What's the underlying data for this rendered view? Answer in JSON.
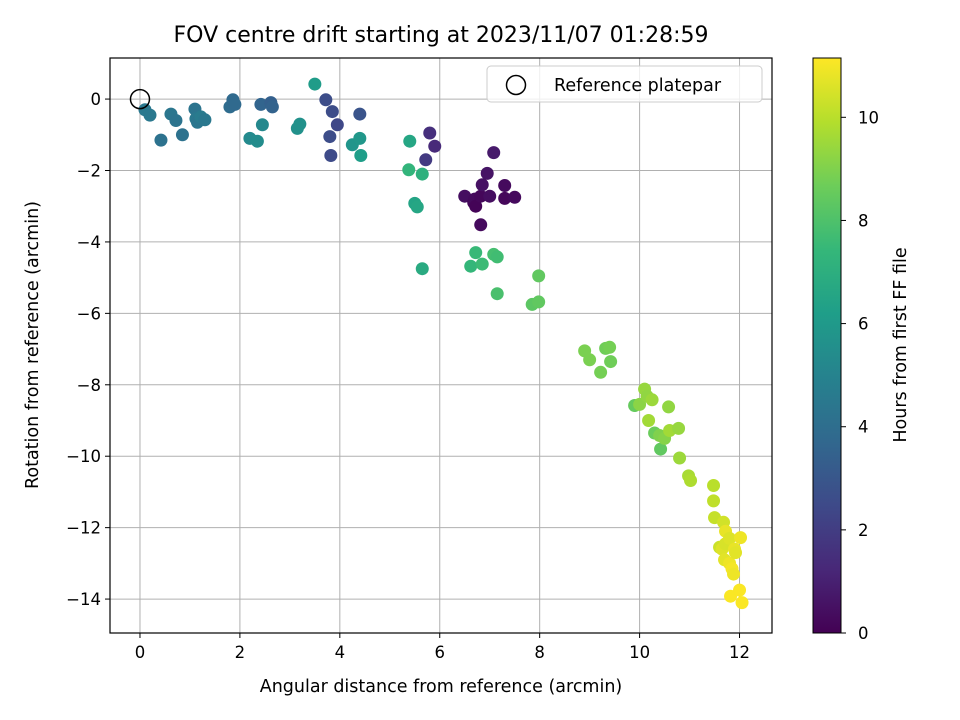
{
  "chart_data": {
    "type": "scatter",
    "title": "FOV centre drift starting at 2023/11/07 01:28:59",
    "xlabel": "Angular distance from reference (arcmin)",
    "ylabel": "Rotation from reference (arcmin)",
    "xlim": [
      -0.6,
      12.65
    ],
    "ylim": [
      -14.95,
      1.15
    ],
    "xticks": [
      0,
      2,
      4,
      6,
      8,
      10,
      12
    ],
    "yticks": [
      0,
      -2,
      -4,
      -6,
      -8,
      -10,
      -12,
      -14
    ],
    "grid": true,
    "legend": {
      "label": "Reference platepar",
      "placement": "top-right"
    },
    "reference_point": {
      "x": 0,
      "y": 0
    },
    "colorbar": {
      "label": "Hours from first FF file",
      "min": 0,
      "max": 11.15,
      "ticks": [
        0,
        2,
        4,
        6,
        8,
        10
      ],
      "colormap": "viridis"
    },
    "points": [
      {
        "x": 0.1,
        "y": -0.3,
        "c": 4.5
      },
      {
        "x": 0.2,
        "y": -0.45,
        "c": 4.5
      },
      {
        "x": 0.42,
        "y": -1.15,
        "c": 4.2
      },
      {
        "x": 0.62,
        "y": -0.42,
        "c": 4.4
      },
      {
        "x": 0.72,
        "y": -0.6,
        "c": 4.3
      },
      {
        "x": 0.85,
        "y": -1.0,
        "c": 4.2
      },
      {
        "x": 1.1,
        "y": -0.28,
        "c": 4.3
      },
      {
        "x": 1.12,
        "y": -0.55,
        "c": 4.5
      },
      {
        "x": 1.15,
        "y": -0.65,
        "c": 4.4
      },
      {
        "x": 1.22,
        "y": -0.5,
        "c": 4.6
      },
      {
        "x": 1.3,
        "y": -0.58,
        "c": 4.5
      },
      {
        "x": 1.8,
        "y": -0.22,
        "c": 3.9
      },
      {
        "x": 1.86,
        "y": -0.02,
        "c": 3.8
      },
      {
        "x": 1.9,
        "y": -0.15,
        "c": 3.8
      },
      {
        "x": 2.2,
        "y": -1.1,
        "c": 5.3
      },
      {
        "x": 2.35,
        "y": -1.18,
        "c": 5.4
      },
      {
        "x": 2.42,
        "y": -0.15,
        "c": 3.6
      },
      {
        "x": 2.45,
        "y": -0.72,
        "c": 5.2
      },
      {
        "x": 2.62,
        "y": -0.1,
        "c": 3.4
      },
      {
        "x": 2.65,
        "y": -0.22,
        "c": 3.5
      },
      {
        "x": 3.15,
        "y": -0.82,
        "c": 5.6
      },
      {
        "x": 3.2,
        "y": -0.7,
        "c": 5.6
      },
      {
        "x": 3.5,
        "y": 0.42,
        "c": 6.1
      },
      {
        "x": 3.72,
        "y": -0.02,
        "c": 2.6
      },
      {
        "x": 3.8,
        "y": -1.05,
        "c": 2.6
      },
      {
        "x": 3.82,
        "y": -1.58,
        "c": 2.5
      },
      {
        "x": 3.85,
        "y": -0.35,
        "c": 2.6
      },
      {
        "x": 3.95,
        "y": -0.72,
        "c": 2.4
      },
      {
        "x": 4.25,
        "y": -1.28,
        "c": 5.8
      },
      {
        "x": 4.4,
        "y": -1.1,
        "c": 5.9
      },
      {
        "x": 4.42,
        "y": -1.58,
        "c": 6.2
      },
      {
        "x": 4.4,
        "y": -0.42,
        "c": 2.9
      },
      {
        "x": 5.4,
        "y": -1.18,
        "c": 6.6
      },
      {
        "x": 5.38,
        "y": -1.98,
        "c": 7.3
      },
      {
        "x": 5.5,
        "y": -2.92,
        "c": 6.5
      },
      {
        "x": 5.55,
        "y": -3.02,
        "c": 6.6
      },
      {
        "x": 5.65,
        "y": -2.1,
        "c": 7.1
      },
      {
        "x": 5.72,
        "y": -1.7,
        "c": 1.9
      },
      {
        "x": 5.8,
        "y": -0.95,
        "c": 1.5
      },
      {
        "x": 5.9,
        "y": -1.32,
        "c": 1.3
      },
      {
        "x": 5.65,
        "y": -4.75,
        "c": 6.8
      },
      {
        "x": 6.5,
        "y": -2.72,
        "c": 0.4
      },
      {
        "x": 6.68,
        "y": -2.9,
        "c": 0.2
      },
      {
        "x": 6.7,
        "y": -2.8,
        "c": 0.3
      },
      {
        "x": 6.72,
        "y": -3.0,
        "c": 0.1
      },
      {
        "x": 6.82,
        "y": -2.72,
        "c": 0.2
      },
      {
        "x": 6.85,
        "y": -2.4,
        "c": 0.5
      },
      {
        "x": 6.82,
        "y": -3.52,
        "c": 0.3
      },
      {
        "x": 6.95,
        "y": -2.08,
        "c": 0.6
      },
      {
        "x": 7.0,
        "y": -2.72,
        "c": 0.4
      },
      {
        "x": 7.08,
        "y": -1.5,
        "c": 0.8
      },
      {
        "x": 7.3,
        "y": -2.42,
        "c": 0.3
      },
      {
        "x": 7.3,
        "y": -2.78,
        "c": 0.2
      },
      {
        "x": 7.5,
        "y": -2.75,
        "c": 0.3
      },
      {
        "x": 6.62,
        "y": -4.68,
        "c": 7.4
      },
      {
        "x": 6.72,
        "y": -4.3,
        "c": 7.5
      },
      {
        "x": 6.85,
        "y": -4.62,
        "c": 7.6
      },
      {
        "x": 7.08,
        "y": -4.35,
        "c": 7.8
      },
      {
        "x": 7.15,
        "y": -4.42,
        "c": 7.7
      },
      {
        "x": 7.15,
        "y": -5.45,
        "c": 7.9
      },
      {
        "x": 7.85,
        "y": -5.75,
        "c": 8.3
      },
      {
        "x": 7.98,
        "y": -5.68,
        "c": 8.4
      },
      {
        "x": 7.98,
        "y": -4.95,
        "c": 8.4
      },
      {
        "x": 8.9,
        "y": -7.05,
        "c": 8.9
      },
      {
        "x": 9.0,
        "y": -7.3,
        "c": 8.9
      },
      {
        "x": 9.22,
        "y": -7.65,
        "c": 8.8
      },
      {
        "x": 9.32,
        "y": -6.98,
        "c": 8.7
      },
      {
        "x": 9.4,
        "y": -6.95,
        "c": 8.8
      },
      {
        "x": 9.42,
        "y": -7.35,
        "c": 8.7
      },
      {
        "x": 9.9,
        "y": -8.58,
        "c": 8.5
      },
      {
        "x": 10.0,
        "y": -8.55,
        "c": 9.2
      },
      {
        "x": 10.1,
        "y": -8.12,
        "c": 9.4
      },
      {
        "x": 10.15,
        "y": -8.32,
        "c": 9.3
      },
      {
        "x": 10.18,
        "y": -9.0,
        "c": 9.6
      },
      {
        "x": 10.25,
        "y": -8.42,
        "c": 9.5
      },
      {
        "x": 10.3,
        "y": -9.35,
        "c": 8.6
      },
      {
        "x": 10.4,
        "y": -9.42,
        "c": 9.0
      },
      {
        "x": 10.42,
        "y": -9.8,
        "c": 8.4
      },
      {
        "x": 10.5,
        "y": -9.5,
        "c": 9.1
      },
      {
        "x": 10.58,
        "y": -8.62,
        "c": 9.3
      },
      {
        "x": 10.6,
        "y": -9.28,
        "c": 9.6
      },
      {
        "x": 10.78,
        "y": -9.22,
        "c": 9.4
      },
      {
        "x": 10.8,
        "y": -10.05,
        "c": 9.5
      },
      {
        "x": 10.98,
        "y": -10.55,
        "c": 9.7
      },
      {
        "x": 11.02,
        "y": -10.68,
        "c": 9.8
      },
      {
        "x": 11.48,
        "y": -10.82,
        "c": 10.0
      },
      {
        "x": 11.48,
        "y": -11.25,
        "c": 10.1
      },
      {
        "x": 11.5,
        "y": -11.72,
        "c": 10.2
      },
      {
        "x": 11.6,
        "y": -12.55,
        "c": 10.3
      },
      {
        "x": 11.65,
        "y": -12.6,
        "c": 10.6
      },
      {
        "x": 11.68,
        "y": -11.85,
        "c": 10.4
      },
      {
        "x": 11.7,
        "y": -12.9,
        "c": 10.7
      },
      {
        "x": 11.72,
        "y": -12.1,
        "c": 10.8
      },
      {
        "x": 11.72,
        "y": -12.45,
        "c": 10.5
      },
      {
        "x": 11.8,
        "y": -13.0,
        "c": 10.9
      },
      {
        "x": 11.8,
        "y": -12.3,
        "c": 10.6
      },
      {
        "x": 11.82,
        "y": -13.92,
        "c": 11.1
      },
      {
        "x": 11.85,
        "y": -13.15,
        "c": 11.0
      },
      {
        "x": 11.88,
        "y": -13.3,
        "c": 10.9
      },
      {
        "x": 11.9,
        "y": -12.6,
        "c": 10.8
      },
      {
        "x": 11.92,
        "y": -12.7,
        "c": 10.7
      },
      {
        "x": 12.02,
        "y": -12.28,
        "c": 10.9
      },
      {
        "x": 12.0,
        "y": -13.75,
        "c": 11.1
      },
      {
        "x": 12.05,
        "y": -14.1,
        "c": 11.1
      }
    ]
  }
}
